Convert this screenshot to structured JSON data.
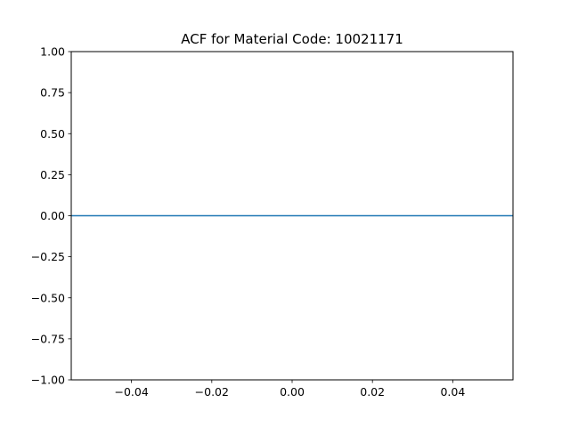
{
  "chart_data": {
    "type": "line",
    "title": "ACF for Material Code: 10021171",
    "xlabel": "",
    "ylabel": "",
    "xlim": [
      -0.055,
      0.055
    ],
    "ylim": [
      -1.0,
      1.0
    ],
    "x_ticks": [
      -0.04,
      -0.02,
      0.0,
      0.02,
      0.04
    ],
    "x_tick_labels": [
      "−0.04",
      "−0.02",
      "0.00",
      "0.02",
      "0.04"
    ],
    "y_ticks": [
      1.0,
      0.75,
      0.5,
      0.25,
      0.0,
      -0.25,
      -0.5,
      -0.75,
      -1.0
    ],
    "y_tick_labels": [
      "1.00",
      "0.75",
      "0.50",
      "0.25",
      "0.00",
      "−0.25",
      "−0.50",
      "−0.75",
      "−1.00"
    ],
    "zero_line": {
      "y": 0.0,
      "color": "#1f77b4"
    },
    "grid": false,
    "legend": "none"
  }
}
